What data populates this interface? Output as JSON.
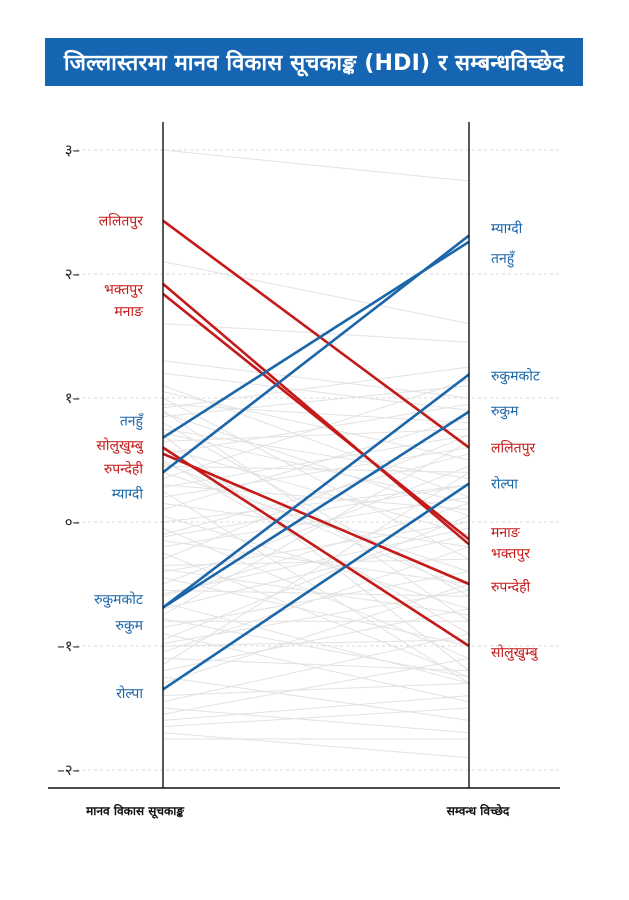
{
  "title": "जिल्लास्तरमा मानव विकास सूचकाङ्क (HDI) र सम्बन्धविच्छेद",
  "colors": {
    "title_bg": "#1565b3",
    "red": "#c41a1a",
    "blue": "#1a66a8",
    "grey": "#e2e2e2",
    "axis": "#111111"
  },
  "chart_data": {
    "type": "line",
    "chart_subtype": "slope",
    "xlabel_left": "मानव विकास सूचकाङ्क",
    "xlabel_right": "सम्वन्ध विच्छेद",
    "ylim": [
      -2.1,
      3.2
    ],
    "yticks": [
      3,
      2,
      1,
      0,
      -1,
      -2
    ],
    "ytick_labels": [
      "३–",
      "२–",
      "१–",
      "०–",
      "–१–",
      "–२–"
    ],
    "grid": true,
    "highlighted": [
      {
        "name": "ललितपुर",
        "left": 2.43,
        "right": 0.6,
        "group": "red"
      },
      {
        "name": "भक्तपुर",
        "left": 1.92,
        "right": -0.18,
        "group": "red"
      },
      {
        "name": "मनाङ",
        "left": 1.84,
        "right": -0.14,
        "group": "red"
      },
      {
        "name": "सोलुखुम्बु",
        "left": 0.6,
        "right": -1.0,
        "group": "red"
      },
      {
        "name": "रुपन्देही",
        "left": 0.55,
        "right": -0.5,
        "group": "red"
      },
      {
        "name": "तनहुँ",
        "left": 0.68,
        "right": 2.26,
        "group": "blue"
      },
      {
        "name": "म्याग्दी",
        "left": 0.4,
        "right": 2.31,
        "group": "blue"
      },
      {
        "name": "रुकुमकोट",
        "left": -0.69,
        "right": 1.19,
        "group": "blue"
      },
      {
        "name": "रुकुम",
        "left": -0.69,
        "right": 0.89,
        "group": "blue"
      },
      {
        "name": "रोल्पा",
        "left": -1.35,
        "right": 0.31,
        "group": "blue"
      }
    ],
    "left_labels": [
      {
        "text": "ललितपुर",
        "value": 2.43,
        "group": "red"
      },
      {
        "text": "भक्तपुर",
        "value": 1.88,
        "group": "red"
      },
      {
        "text": "मनाङ",
        "value": 1.7,
        "group": "red"
      },
      {
        "text": "तनहुँ",
        "value": 0.82,
        "group": "blue"
      },
      {
        "text": "सोलुखुम्बु",
        "value": 0.62,
        "group": "red"
      },
      {
        "text": "रुपन्देही",
        "value": 0.43,
        "group": "red"
      },
      {
        "text": "म्याग्दी",
        "value": 0.23,
        "group": "blue"
      },
      {
        "text": "रुकुमकोट",
        "value": -0.62,
        "group": "blue"
      },
      {
        "text": "रुकुम",
        "value": -0.83,
        "group": "blue"
      },
      {
        "text": "रोल्पा",
        "value": -1.38,
        "group": "blue"
      }
    ],
    "right_labels": [
      {
        "text": "म्याग्दी",
        "value": 2.37,
        "group": "blue"
      },
      {
        "text": "तनहुँ",
        "value": 2.13,
        "group": "blue"
      },
      {
        "text": "रुकुमकोट",
        "value": 1.18,
        "group": "blue"
      },
      {
        "text": "रुकुम",
        "value": 0.9,
        "group": "blue"
      },
      {
        "text": "ललितपुर",
        "value": 0.6,
        "group": "red"
      },
      {
        "text": "रोल्पा",
        "value": 0.31,
        "group": "blue"
      },
      {
        "text": "मनाङ",
        "value": -0.08,
        "group": "red"
      },
      {
        "text": "भक्तपुर",
        "value": -0.25,
        "group": "red"
      },
      {
        "text": "रुपन्देही",
        "value": -0.52,
        "group": "red"
      },
      {
        "text": "सोलुखुम्बु",
        "value": -1.05,
        "group": "red"
      }
    ],
    "background_lines": [
      [
        3.0,
        2.75
      ],
      [
        2.1,
        1.6
      ],
      [
        1.6,
        1.45
      ],
      [
        1.3,
        1.0
      ],
      [
        1.1,
        0.2
      ],
      [
        1.05,
        0.5
      ],
      [
        1.0,
        -0.3
      ],
      [
        0.95,
        0.8
      ],
      [
        0.9,
        -0.8
      ],
      [
        0.88,
        0.05
      ],
      [
        0.85,
        1.1
      ],
      [
        0.8,
        -0.6
      ],
      [
        0.75,
        0.35
      ],
      [
        0.7,
        -1.2
      ],
      [
        0.65,
        0.75
      ],
      [
        0.6,
        -0.1
      ],
      [
        0.55,
        0.95
      ],
      [
        0.5,
        -0.9
      ],
      [
        0.45,
        0.4
      ],
      [
        0.4,
        -0.4
      ],
      [
        0.35,
        1.15
      ],
      [
        0.3,
        0.1
      ],
      [
        0.25,
        -1.3
      ],
      [
        0.2,
        0.6
      ],
      [
        0.15,
        -0.2
      ],
      [
        0.1,
        0.85
      ],
      [
        0.05,
        -0.7
      ],
      [
        0.0,
        0.3
      ],
      [
        -0.05,
        -1.1
      ],
      [
        -0.1,
        0.55
      ],
      [
        -0.15,
        -0.5
      ],
      [
        -0.2,
        0.2
      ],
      [
        -0.25,
        -1.25
      ],
      [
        -0.3,
        0.7
      ],
      [
        -0.35,
        -0.3
      ],
      [
        -0.4,
        0.0
      ],
      [
        -0.45,
        -1.0
      ],
      [
        -0.5,
        0.45
      ],
      [
        -0.55,
        -0.6
      ],
      [
        -0.6,
        0.15
      ],
      [
        -0.65,
        -1.3
      ],
      [
        -0.7,
        -0.1
      ],
      [
        -0.75,
        0.65
      ],
      [
        -0.8,
        -0.8
      ],
      [
        -0.85,
        -0.4
      ],
      [
        -0.9,
        -1.45
      ],
      [
        -0.95,
        0.05
      ],
      [
        -1.0,
        -0.95
      ],
      [
        -1.05,
        -0.2
      ],
      [
        -1.1,
        -1.2
      ],
      [
        -1.15,
        0.4
      ],
      [
        -1.2,
        -0.7
      ],
      [
        -1.25,
        -1.6
      ],
      [
        -1.3,
        -0.5
      ],
      [
        -1.4,
        -1.3
      ],
      [
        -1.45,
        -0.9
      ],
      [
        -1.5,
        -1.7
      ],
      [
        -1.55,
        -1.1
      ],
      [
        -1.6,
        -1.4
      ],
      [
        -1.65,
        -1.5
      ],
      [
        -1.7,
        -1.9
      ],
      [
        -1.75,
        -1.75
      ],
      [
        1.2,
        0.9
      ],
      [
        0.92,
        1.25
      ],
      [
        0.72,
        0.15
      ],
      [
        0.48,
        -0.55
      ],
      [
        0.28,
        0.7
      ],
      [
        -0.12,
        0.3
      ],
      [
        -0.38,
        -0.75
      ],
      [
        -0.58,
        -0.05
      ],
      [
        -0.78,
        -1.25
      ],
      [
        -0.98,
        -0.55
      ]
    ]
  }
}
